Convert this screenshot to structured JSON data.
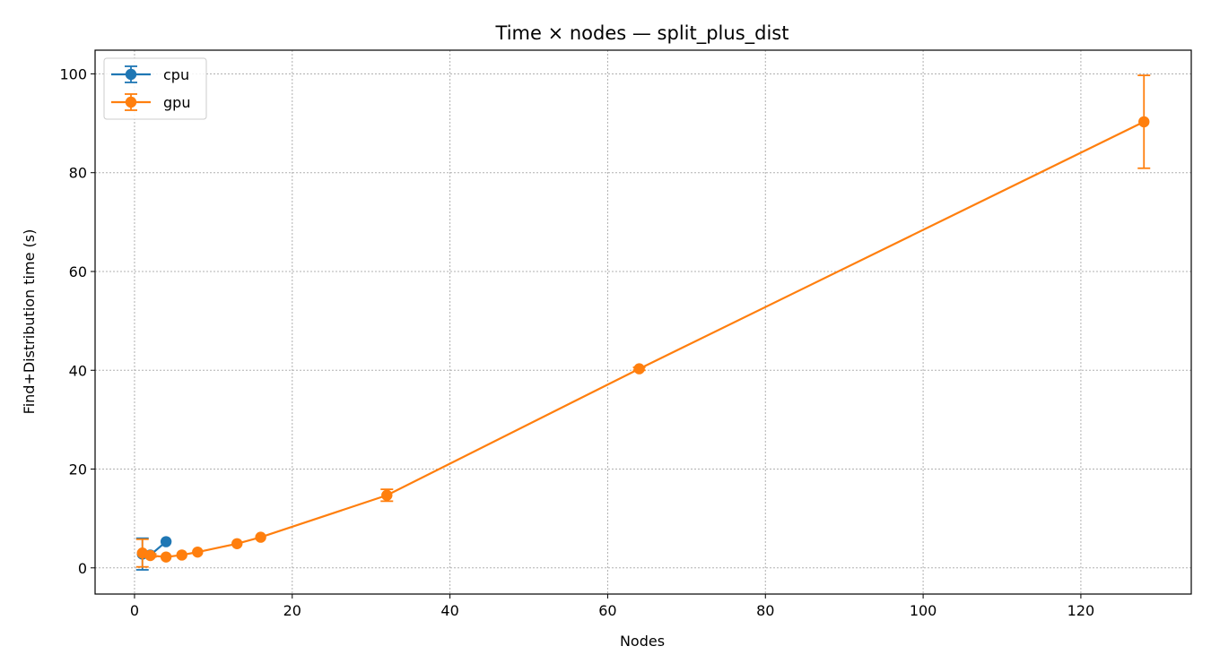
{
  "chart_data": {
    "type": "line",
    "title": "Time × nodes — split_plus_dist",
    "xlabel": "Nodes",
    "ylabel": "Find+Distribution time (s)",
    "xlim": [
      -5,
      134
    ],
    "ylim": [
      -5.3,
      104.8
    ],
    "xticks": [
      0,
      20,
      40,
      60,
      80,
      100,
      120
    ],
    "yticks": [
      0,
      20,
      40,
      60,
      80,
      100
    ],
    "grid": true,
    "legend_position": "top-left",
    "series": [
      {
        "name": "cpu",
        "color": "#1f77b4",
        "x": [
          1,
          2,
          4
        ],
        "y": [
          2.8,
          2.6,
          5.3
        ],
        "err": [
          3.2,
          0,
          0
        ]
      },
      {
        "name": "gpu",
        "color": "#ff7f0e",
        "x": [
          1,
          2,
          4,
          6,
          8,
          13,
          16,
          32,
          64,
          128
        ],
        "y": [
          3.0,
          2.5,
          2.2,
          2.6,
          3.2,
          4.9,
          6.2,
          14.7,
          40.3,
          90.3
        ],
        "err": [
          2.8,
          0.3,
          0,
          0,
          0,
          0,
          0,
          1.2,
          0.3,
          9.4
        ]
      }
    ]
  }
}
